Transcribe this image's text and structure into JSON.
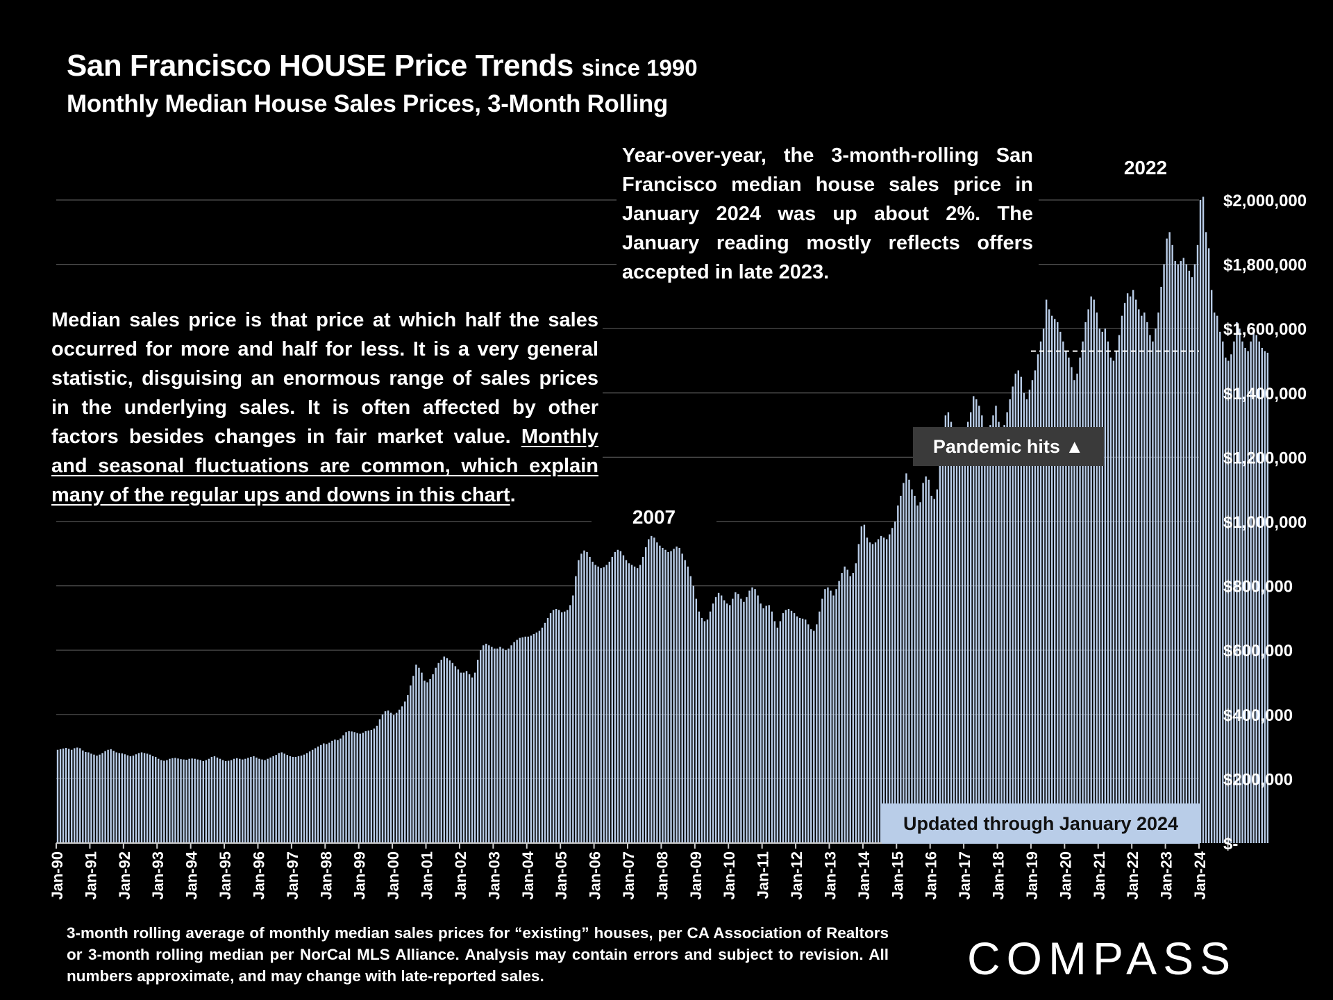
{
  "title": {
    "main": "San Francisco HOUSE Price Trends",
    "since": "since 1990"
  },
  "subtitle": "Monthly Median House Sales Prices, 3-Month Rolling",
  "notes": {
    "median_plain": "Median sales price is that price at which half the sales occurred for more and half for less. It is a very general statistic, disguising an enormous range of sales prices in the underlying sales. It is often affected by other factors besides changes in fair market value. ",
    "median_underlined": "Monthly and seasonal fluctuations are common, which explain many of the regular ups and downs in this chart",
    "median_end": ".",
    "yoy": "Year-over-year, the 3-month-rolling San Francisco median house sales price in January 2024 was up about 2%. The January reading mostly reflects offers accepted in late 2023."
  },
  "annotations": {
    "peak_2007": "2007",
    "peak_2022": "2022",
    "pandemic": "Pandemic hits ▲",
    "updated": "Updated through January 2024"
  },
  "footnote": "3-month rolling average of monthly median sales prices for “existing” houses, per CA Association of Realtors or 3-month rolling median per NorCal MLS Alliance. Analysis may contain errors and subject to revision. All numbers approximate, and may change with late-reported sales.",
  "brand": "COMPASS",
  "colors": {
    "bar": "#b9cde8",
    "background": "#000000",
    "grid": "#555555",
    "text": "#ffffff"
  },
  "chart_data": {
    "type": "bar",
    "title": "San Francisco HOUSE Price Trends since 1990",
    "subtitle": "Monthly Median House Sales Prices, 3-Month Rolling",
    "x_tick_labels": [
      "Jan-90",
      "Jan-91",
      "Jan-92",
      "Jan-93",
      "Jan-94",
      "Jan-95",
      "Jan-96",
      "Jan-97",
      "Jan-98",
      "Jan-99",
      "Jan-00",
      "Jan-01",
      "Jan-02",
      "Jan-03",
      "Jan-04",
      "Jan-05",
      "Jan-06",
      "Jan-07",
      "Jan-08",
      "Jan-09",
      "Jan-10",
      "Jan-11",
      "Jan-12",
      "Jan-13",
      "Jan-14",
      "Jan-15",
      "Jan-16",
      "Jan-17",
      "Jan-18",
      "Jan-19",
      "Jan-20",
      "Jan-21",
      "Jan-22",
      "Jan-23",
      "Jan-24"
    ],
    "y_tick_labels": [
      "$-",
      "$200,000",
      "$400,000",
      "$600,000",
      "$800,000",
      "$1,000,000",
      "$1,200,000",
      "$1,400,000",
      "$1,600,000",
      "$1,800,000",
      "$2,000,000"
    ],
    "ylim": [
      0,
      2000000
    ],
    "ytick_step": 200000,
    "grid": true,
    "reference_line": {
      "value": 1530000,
      "from": "Jan-19",
      "to": "Jan-24",
      "style": "dashed"
    },
    "x_start": "Jan-90",
    "x_end": "Jan-24",
    "frequency": "monthly",
    "series": [
      {
        "values": [
          290000,
          292000,
          294000,
          296000,
          293000,
          290000,
          295000,
          297000,
          295000,
          288000,
          283000,
          282000,
          278000,
          275000,
          272000,
          275000,
          280000,
          286000,
          290000,
          292000,
          287000,
          282000,
          280000,
          279000,
          276000,
          273000,
          270000,
          272000,
          276000,
          280000,
          282000,
          280000,
          278000,
          275000,
          270000,
          268000,
          262000,
          258000,
          256000,
          258000,
          262000,
          264000,
          265000,
          263000,
          261000,
          260000,
          259000,
          262000,
          263000,
          262000,
          260000,
          258000,
          255000,
          258000,
          262000,
          268000,
          270000,
          266000,
          262000,
          258000,
          255000,
          256000,
          258000,
          262000,
          264000,
          262000,
          260000,
          262000,
          265000,
          268000,
          270000,
          266000,
          262000,
          260000,
          258000,
          262000,
          266000,
          270000,
          274000,
          280000,
          282000,
          278000,
          274000,
          270000,
          268000,
          268000,
          270000,
          272000,
          275000,
          280000,
          285000,
          290000,
          295000,
          300000,
          305000,
          310000,
          308000,
          312000,
          318000,
          322000,
          320000,
          325000,
          335000,
          345000,
          348000,
          347000,
          345000,
          342000,
          340000,
          343000,
          348000,
          350000,
          352000,
          356000,
          365000,
          385000,
          400000,
          410000,
          412000,
          405000,
          398000,
          405000,
          415000,
          425000,
          440000,
          460000,
          490000,
          520000,
          555000,
          545000,
          530000,
          505000,
          500000,
          510000,
          525000,
          545000,
          560000,
          570000,
          580000,
          575000,
          568000,
          560000,
          550000,
          540000,
          530000,
          530000,
          535000,
          525000,
          515000,
          530000,
          570000,
          600000,
          615000,
          620000,
          615000,
          610000,
          605000,
          605000,
          610000,
          605000,
          600000,
          605000,
          615000,
          625000,
          632000,
          638000,
          640000,
          642000,
          642000,
          645000,
          650000,
          655000,
          660000,
          670000,
          685000,
          700000,
          715000,
          725000,
          728000,
          725000,
          718000,
          720000,
          725000,
          740000,
          770000,
          830000,
          880000,
          900000,
          910000,
          905000,
          890000,
          875000,
          865000,
          860000,
          855000,
          858000,
          865000,
          875000,
          890000,
          905000,
          912000,
          908000,
          895000,
          880000,
          870000,
          865000,
          860000,
          855000,
          865000,
          890000,
          920000,
          945000,
          955000,
          950000,
          935000,
          925000,
          918000,
          912000,
          905000,
          908000,
          915000,
          922000,
          918000,
          900000,
          880000,
          860000,
          830000,
          800000,
          760000,
          720000,
          700000,
          690000,
          695000,
          720000,
          745000,
          765000,
          778000,
          770000,
          755000,
          745000,
          740000,
          760000,
          780000,
          775000,
          760000,
          750000,
          765000,
          785000,
          795000,
          790000,
          770000,
          745000,
          730000,
          738000,
          740000,
          720000,
          690000,
          670000,
          690000,
          715000,
          725000,
          728000,
          722000,
          715000,
          705000,
          700000,
          698000,
          695000,
          680000,
          665000,
          660000,
          680000,
          720000,
          760000,
          790000,
          795000,
          785000,
          770000,
          790000,
          815000,
          840000,
          860000,
          850000,
          830000,
          840000,
          870000,
          930000,
          985000,
          990000,
          950000,
          935000,
          930000,
          935000,
          945000,
          955000,
          950000,
          945000,
          960000,
          980000,
          1000000,
          1050000,
          1080000,
          1120000,
          1150000,
          1130000,
          1100000,
          1080000,
          1050000,
          1060000,
          1120000,
          1140000,
          1130000,
          1080000,
          1070000,
          1100000,
          1180000,
          1260000,
          1330000,
          1340000,
          1310000,
          1280000,
          1260000,
          1250000,
          1270000,
          1290000,
          1310000,
          1340000,
          1390000,
          1380000,
          1360000,
          1330000,
          1290000,
          1280000,
          1300000,
          1330000,
          1360000,
          1310000,
          1290000,
          1300000,
          1340000,
          1380000,
          1420000,
          1460000,
          1470000,
          1450000,
          1400000,
          1380000,
          1410000,
          1440000,
          1470000,
          1520000,
          1560000,
          1600000,
          1690000,
          1660000,
          1640000,
          1630000,
          1620000,
          1590000,
          1560000,
          1530000,
          1510000,
          1480000,
          1440000,
          1460000,
          1510000,
          1560000,
          1620000,
          1660000,
          1700000,
          1690000,
          1650000,
          1600000,
          1590000,
          1600000,
          1560000,
          1510000,
          1500000,
          1530000,
          1580000,
          1640000,
          1680000,
          1710000,
          1700000,
          1720000,
          1690000,
          1660000,
          1640000,
          1650000,
          1620000,
          1580000,
          1560000,
          1600000,
          1650000,
          1730000,
          1800000,
          1880000,
          1900000,
          1860000,
          1810000,
          1800000,
          1810000,
          1820000,
          1800000,
          1780000,
          1760000,
          1800000,
          1860000,
          2000000,
          2010000,
          1900000,
          1850000,
          1720000,
          1650000,
          1640000,
          1590000,
          1560000,
          1510000,
          1500000,
          1520000,
          1560000,
          1620000,
          1600000,
          1560000,
          1540000,
          1530000,
          1560000,
          1600000,
          1580000,
          1560000,
          1540000,
          1530000,
          1525000
        ]
      }
    ]
  }
}
